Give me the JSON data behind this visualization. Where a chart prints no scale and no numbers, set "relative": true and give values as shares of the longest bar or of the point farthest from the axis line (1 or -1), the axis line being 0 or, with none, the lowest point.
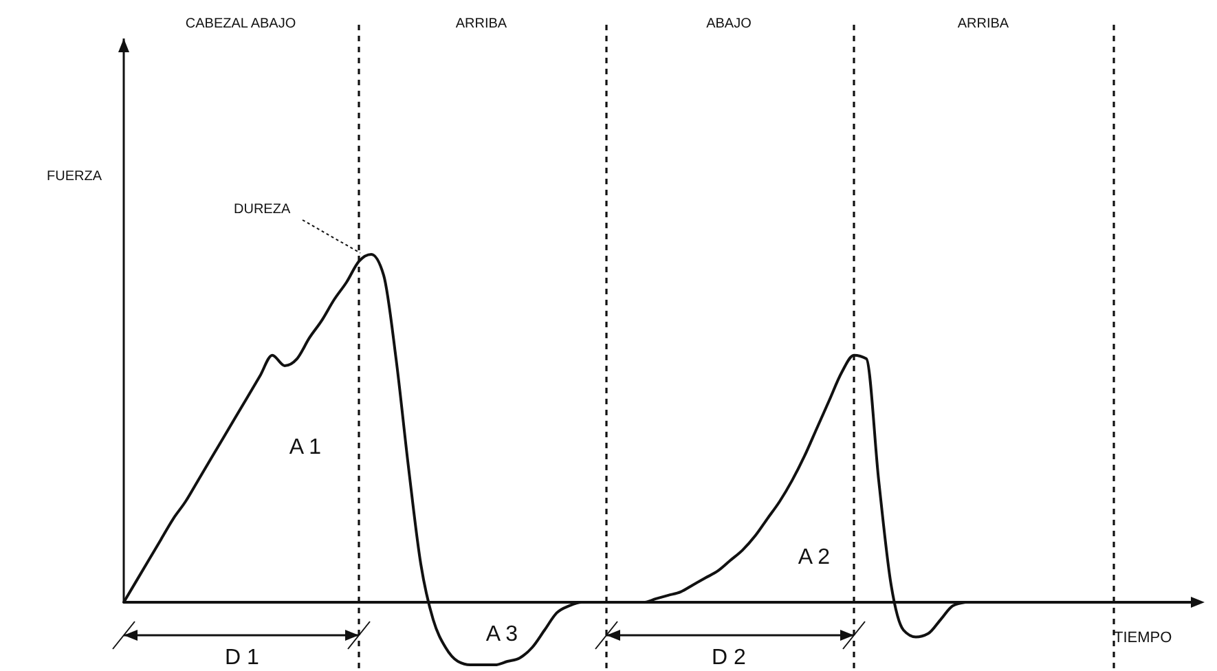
{
  "chart_data": {
    "type": "line",
    "relative": true,
    "xlabel": "TIEMPO",
    "grid": "x",
    "color": "#111111",
    "line_style": "solid",
    "marker": "none",
    "categories": [
      null,
      null,
      null,
      null,
      null,
      null,
      null,
      null,
      null,
      null,
      null,
      null,
      null,
      null,
      null,
      null,
      null,
      null,
      null,
      null,
      null,
      null,
      null,
      null,
      null,
      null,
      null,
      null,
      null,
      null,
      null,
      null,
      null,
      null,
      null,
      null,
      null,
      null,
      null,
      null,
      null,
      null,
      null,
      null,
      null,
      null,
      null,
      null,
      null,
      null,
      null,
      null,
      null,
      null,
      null,
      null,
      null,
      null,
      null,
      null,
      null,
      null,
      null,
      null,
      null,
      null,
      null,
      null,
      null,
      null,
      null,
      null,
      null,
      null,
      null,
      null,
      null,
      null,
      null,
      null,
      null,
      null,
      null,
      null,
      null,
      null,
      null
    ],
    "values": [
      0,
      0.06,
      0.12,
      0.18,
      0.24,
      0.29,
      0.35,
      0.41,
      0.47,
      0.53,
      0.59,
      0.65,
      0.71,
      0.68,
      0.7,
      0.76,
      0.81,
      0.87,
      0.92,
      0.98,
      1,
      0.94,
      0.7,
      0.39,
      0.11,
      -0.05,
      -0.13,
      -0.17,
      -0.18,
      -0.18,
      -0.18,
      -0.17,
      -0.16,
      -0.13,
      -0.08,
      -0.03,
      -0.01,
      0,
      0,
      0,
      0,
      0,
      0,
      0.01,
      0.02,
      0.03,
      0.05,
      0.07,
      0.09,
      0.12,
      0.15,
      0.19,
      0.24,
      0.29,
      0.35,
      0.42,
      0.5,
      0.58,
      0.66,
      0.71,
      0.7,
      0.35,
      0.05,
      -0.08,
      -0.1,
      -0.09,
      -0.05,
      -0.01,
      0,
      null,
      null,
      null,
      null,
      null,
      null,
      null,
      null,
      null,
      null,
      null,
      null,
      null,
      null,
      null,
      null,
      null,
      null
    ],
    "annotations": [
      "CABEZAL ABAJO",
      "ARRIBA",
      "ABAJO",
      "ARRIBA",
      "DUREZA",
      "A 1",
      "A 2",
      "A 3",
      "D 1",
      "D 2",
      "FUERZA"
    ]
  }
}
